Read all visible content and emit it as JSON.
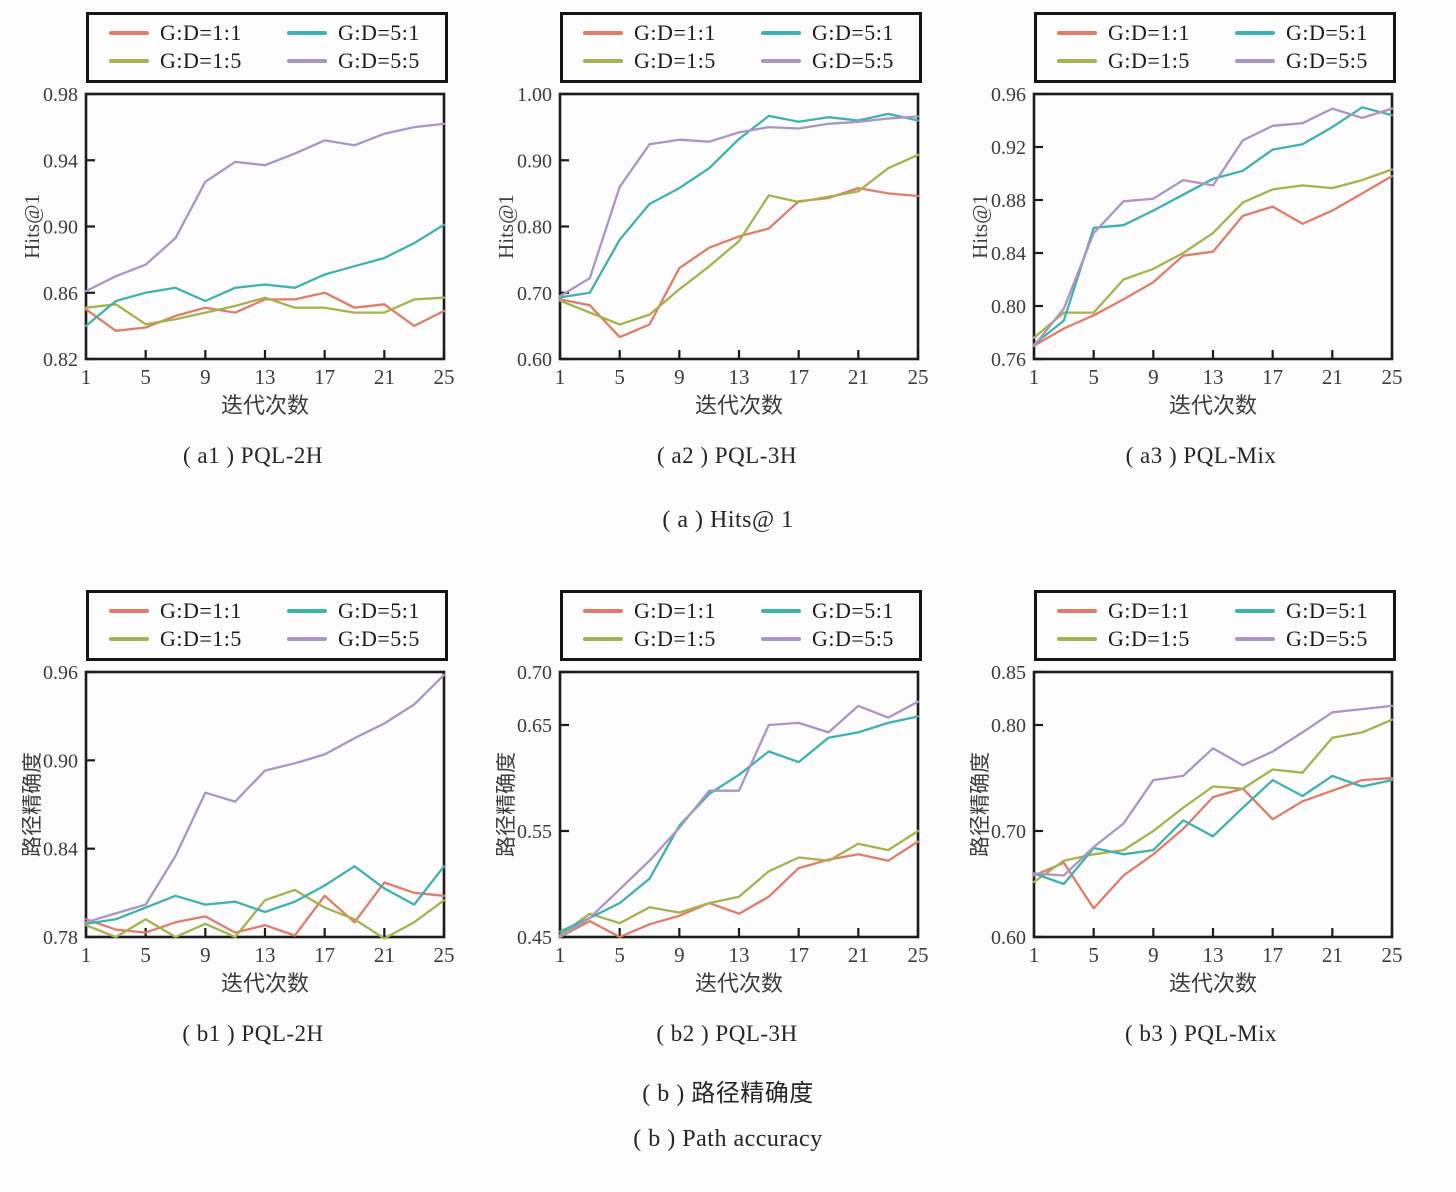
{
  "captions": {
    "a": "( a ) Hits@ 1",
    "b_zh": "( b ) 路径精确度",
    "b_en": "( b ) Path accuracy"
  },
  "colors": {
    "red": "#df7d6a",
    "olive": "#a5b34e",
    "teal": "#3fb2af",
    "purple": "#ab95c4",
    "axis": "#1c1c1c",
    "tick_text": "#3c3c3c"
  },
  "series_meta": [
    {
      "name": "G:D=1:1",
      "color": "#df7d6a"
    },
    {
      "name": "G:D=1:5",
      "color": "#a5b34e"
    },
    {
      "name": "G:D=5:1",
      "color": "#3fb2af"
    },
    {
      "name": "G:D=5:5",
      "color": "#ab95c4"
    }
  ],
  "chart_data": [
    {
      "id": "a1",
      "type": "line",
      "caption": "( a1 ) PQL-2H",
      "ylabel": "Hits@1",
      "xlabel": "迭代次数",
      "ylim": [
        0.82,
        0.98
      ],
      "yticks": [
        "0.82",
        "0.86",
        "0.90",
        "0.94",
        "0.98"
      ],
      "x": [
        1,
        3,
        5,
        7,
        9,
        11,
        13,
        15,
        17,
        19,
        21,
        23,
        25
      ],
      "xticks": [
        1,
        5,
        9,
        13,
        17,
        21,
        25
      ],
      "series": [
        {
          "name": "G:D=1:1",
          "values": [
            0.85,
            0.837,
            0.839,
            0.846,
            0.851,
            0.848,
            0.856,
            0.856,
            0.86,
            0.851,
            0.853,
            0.84,
            0.849
          ]
        },
        {
          "name": "G:D=1:5",
          "values": [
            0.851,
            0.853,
            0.841,
            0.844,
            0.848,
            0.852,
            0.857,
            0.851,
            0.851,
            0.848,
            0.848,
            0.856,
            0.857
          ]
        },
        {
          "name": "G:D=5:1",
          "values": [
            0.84,
            0.855,
            0.86,
            0.863,
            0.855,
            0.863,
            0.865,
            0.863,
            0.871,
            0.876,
            0.881,
            0.89,
            0.901
          ]
        },
        {
          "name": "G:D=5:5",
          "values": [
            0.861,
            0.87,
            0.877,
            0.893,
            0.927,
            0.939,
            0.937,
            0.944,
            0.952,
            0.949,
            0.956,
            0.96,
            0.962
          ]
        }
      ]
    },
    {
      "id": "a2",
      "type": "line",
      "caption": "( a2 ) PQL-3H",
      "ylabel": "Hits@1",
      "xlabel": "迭代次数",
      "ylim": [
        0.6,
        1.0
      ],
      "yticks": [
        "0.60",
        "0.70",
        "0.80",
        "0.90",
        "1.00"
      ],
      "x": [
        1,
        3,
        5,
        7,
        9,
        11,
        13,
        15,
        17,
        19,
        21,
        23,
        25
      ],
      "xticks": [
        1,
        5,
        9,
        13,
        17,
        21,
        25
      ],
      "series": [
        {
          "name": "G:D=1:1",
          "values": [
            0.69,
            0.681,
            0.633,
            0.652,
            0.737,
            0.768,
            0.785,
            0.797,
            0.838,
            0.843,
            0.858,
            0.85,
            0.846
          ]
        },
        {
          "name": "G:D=1:5",
          "values": [
            0.688,
            0.67,
            0.652,
            0.667,
            0.705,
            0.74,
            0.778,
            0.847,
            0.837,
            0.845,
            0.853,
            0.888,
            0.908
          ]
        },
        {
          "name": "G:D=5:1",
          "values": [
            0.693,
            0.7,
            0.78,
            0.834,
            0.858,
            0.888,
            0.932,
            0.967,
            0.958,
            0.965,
            0.96,
            0.97,
            0.96
          ]
        },
        {
          "name": "G:D=5:5",
          "values": [
            0.695,
            0.722,
            0.86,
            0.924,
            0.931,
            0.928,
            0.942,
            0.95,
            0.948,
            0.955,
            0.958,
            0.963,
            0.966
          ]
        }
      ]
    },
    {
      "id": "a3",
      "type": "line",
      "caption": "( a3 ) PQL-Mix",
      "ylabel": "Hits@1",
      "xlabel": "迭代次数",
      "ylim": [
        0.76,
        0.96
      ],
      "yticks": [
        "0.76",
        "0.80",
        "0.84",
        "0.88",
        "0.92",
        "0.96"
      ],
      "x": [
        1,
        3,
        5,
        7,
        9,
        11,
        13,
        15,
        17,
        19,
        21,
        23,
        25
      ],
      "xticks": [
        1,
        5,
        9,
        13,
        17,
        21,
        25
      ],
      "series": [
        {
          "name": "G:D=1:1",
          "values": [
            0.77,
            0.783,
            0.793,
            0.805,
            0.818,
            0.838,
            0.841,
            0.868,
            0.875,
            0.862,
            0.872,
            0.885,
            0.898
          ]
        },
        {
          "name": "G:D=1:5",
          "values": [
            0.776,
            0.795,
            0.795,
            0.82,
            0.828,
            0.84,
            0.855,
            0.878,
            0.888,
            0.891,
            0.889,
            0.895,
            0.903
          ]
        },
        {
          "name": "G:D=5:1",
          "values": [
            0.771,
            0.789,
            0.859,
            0.861,
            0.872,
            0.884,
            0.896,
            0.902,
            0.918,
            0.922,
            0.935,
            0.95,
            0.944
          ]
        },
        {
          "name": "G:D=5:5",
          "values": [
            0.77,
            0.798,
            0.855,
            0.879,
            0.881,
            0.895,
            0.891,
            0.925,
            0.936,
            0.938,
            0.949,
            0.942,
            0.949
          ]
        }
      ]
    },
    {
      "id": "b1",
      "type": "line",
      "caption": "( b1 ) PQL-2H",
      "ylabel": "路径精确度",
      "xlabel": "迭代次数",
      "ylim": [
        0.78,
        0.96
      ],
      "yticks": [
        "0.78",
        "0.84",
        "0.90",
        "0.96"
      ],
      "x": [
        1,
        3,
        5,
        7,
        9,
        11,
        13,
        15,
        17,
        19,
        21,
        23,
        25
      ],
      "xticks": [
        1,
        5,
        9,
        13,
        17,
        21,
        25
      ],
      "series": [
        {
          "name": "G:D=1:1",
          "values": [
            0.792,
            0.785,
            0.783,
            0.79,
            0.794,
            0.783,
            0.788,
            0.781,
            0.808,
            0.79,
            0.817,
            0.81,
            0.808
          ]
        },
        {
          "name": "G:D=1:5",
          "values": [
            0.788,
            0.78,
            0.792,
            0.78,
            0.789,
            0.78,
            0.805,
            0.812,
            0.8,
            0.792,
            0.779,
            0.79,
            0.805
          ]
        },
        {
          "name": "G:D=5:1",
          "values": [
            0.789,
            0.792,
            0.8,
            0.808,
            0.802,
            0.804,
            0.797,
            0.804,
            0.815,
            0.828,
            0.813,
            0.802,
            0.828
          ]
        },
        {
          "name": "G:D=5:5",
          "values": [
            0.79,
            0.796,
            0.802,
            0.835,
            0.878,
            0.872,
            0.893,
            0.898,
            0.904,
            0.915,
            0.925,
            0.938,
            0.958
          ]
        }
      ]
    },
    {
      "id": "b2",
      "type": "line",
      "caption": "( b2 ) PQL-3H",
      "ylabel": "路径精确度",
      "xlabel": "迭代次数",
      "ylim": [
        0.45,
        0.7
      ],
      "yticks": [
        "0.45",
        "0.55",
        "0.65",
        "0.70"
      ],
      "x": [
        1,
        3,
        5,
        7,
        9,
        11,
        13,
        15,
        17,
        19,
        21,
        23,
        25
      ],
      "xticks": [
        1,
        5,
        9,
        13,
        17,
        21,
        25
      ],
      "series": [
        {
          "name": "G:D=1:1",
          "values": [
            0.45,
            0.465,
            0.45,
            0.462,
            0.47,
            0.482,
            0.472,
            0.488,
            0.515,
            0.523,
            0.528,
            0.522,
            0.54
          ]
        },
        {
          "name": "G:D=1:5",
          "values": [
            0.452,
            0.472,
            0.463,
            0.478,
            0.473,
            0.482,
            0.488,
            0.512,
            0.525,
            0.522,
            0.538,
            0.532,
            0.55
          ]
        },
        {
          "name": "G:D=5:1",
          "values": [
            0.455,
            0.468,
            0.482,
            0.505,
            0.555,
            0.585,
            0.603,
            0.625,
            0.615,
            0.638,
            0.643,
            0.652,
            0.658
          ]
        },
        {
          "name": "G:D=5:5",
          "values": [
            0.45,
            0.468,
            0.495,
            0.522,
            0.553,
            0.588,
            0.588,
            0.65,
            0.652,
            0.643,
            0.668,
            0.657,
            0.672
          ]
        }
      ]
    },
    {
      "id": "b3",
      "type": "line",
      "caption": "( b3 ) PQL-Mix",
      "ylabel": "路径精确度",
      "xlabel": "迭代次数",
      "ylim": [
        0.6,
        0.85
      ],
      "yticks": [
        "0.60",
        "0.70",
        "0.80",
        "0.85"
      ],
      "x": [
        1,
        3,
        5,
        7,
        9,
        11,
        13,
        15,
        17,
        19,
        21,
        23,
        25
      ],
      "xticks": [
        1,
        5,
        9,
        13,
        17,
        21,
        25
      ],
      "series": [
        {
          "name": "G:D=1:1",
          "values": [
            0.658,
            0.67,
            0.627,
            0.658,
            0.678,
            0.702,
            0.732,
            0.74,
            0.711,
            0.728,
            0.738,
            0.748,
            0.75
          ]
        },
        {
          "name": "G:D=1:5",
          "values": [
            0.652,
            0.672,
            0.678,
            0.682,
            0.7,
            0.722,
            0.742,
            0.74,
            0.758,
            0.755,
            0.788,
            0.793,
            0.805
          ]
        },
        {
          "name": "G:D=5:1",
          "values": [
            0.66,
            0.65,
            0.684,
            0.678,
            0.682,
            0.71,
            0.695,
            0.722,
            0.748,
            0.733,
            0.752,
            0.742,
            0.748
          ]
        },
        {
          "name": "G:D=5:5",
          "values": [
            0.66,
            0.658,
            0.685,
            0.707,
            0.748,
            0.752,
            0.778,
            0.762,
            0.775,
            0.793,
            0.812,
            0.815,
            0.818
          ]
        }
      ]
    }
  ]
}
